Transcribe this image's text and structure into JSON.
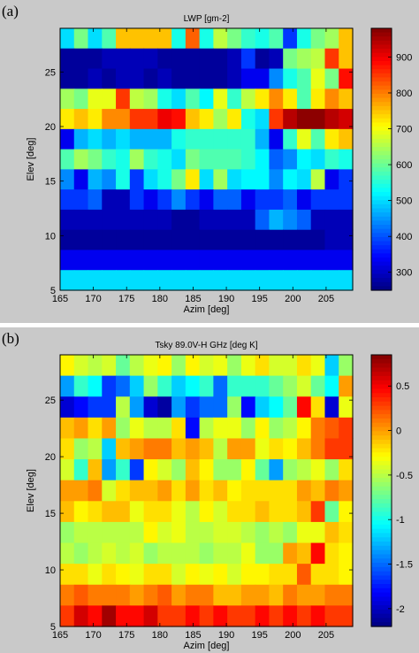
{
  "panels": [
    {
      "label": "(a)",
      "chart_data": {
        "type": "heatmap",
        "title": "LWP [gm-2]",
        "xlabel": "Azim [deg]",
        "ylabel": "Elev [deg]",
        "xlim": [
          165,
          209
        ],
        "ylim": [
          5,
          29
        ],
        "xticks": [
          165,
          170,
          175,
          180,
          185,
          190,
          195,
          200,
          205
        ],
        "yticks": [
          5,
          10,
          15,
          20,
          25
        ],
        "colorbar": {
          "min": 250,
          "max": 980,
          "ticks": [
            300,
            400,
            500,
            600,
            700,
            800,
            900
          ]
        },
        "colormap": "jet",
        "grid": false,
        "rows_top_to_bottom": [
          "HMHLRRRRJTJOMKJLDJMNR",
          "AAABBBBAAAAABDABMNOUR",
          "AABABBABAAAABCCFJLPMV",
          "NMPPUONJHLIPKOQSQLQSR",
          "QRQSSUUWVRQNQJHUYZZYX",
          "CGHGHGGGJKKKKKGCKPLQR",
          "LNMKJNKJHMLLLKIEFIHKJ",
          "FCGFJDHJMQHNHIIFIHOCD",
          "DDEBBDCDFDCEECDDECDDD",
          "BBBBBBBBAABBBBEGFEBBB",
          "AAAAAAAAAAAAAAAAAAABB",
          "CCCCCCCCCCCCCCCCCCCCC",
          "HHHHHHHHHHHHHHHHHHHHH"
        ],
        "legend": "A=270 B=290 C=330 D=380 E=410 F=440 G=470 H=500 I=520 J=540 K=560 L=580 M=610 N=640 O=660 P=690 Q=720 R=750 S=790 T=820 U=850 V=880 W=900 X=920 Y=940 Z=970"
      }
    },
    {
      "label": "(b)",
      "chart_data": {
        "type": "heatmap",
        "title": "Tsky 89.0V-H GHz [deg K]",
        "xlabel": "Azim [deg]",
        "ylabel": "Elev [deg]",
        "xlim": [
          165,
          209
        ],
        "ylim": [
          5,
          29
        ],
        "xticks": [
          165,
          170,
          175,
          180,
          185,
          190,
          195,
          200,
          205
        ],
        "yticks": [
          5,
          10,
          15,
          20,
          25
        ],
        "colorbar": {
          "min": -2.2,
          "max": 0.85,
          "ticks": [
            0.5,
            0,
            -0.5,
            -1,
            -1.5,
            -2
          ]
        },
        "colormap": "jet",
        "grid": false,
        "rows_top_to_bottom": [
          "OMLMJLNOKOMNKNPMMPNGK",
          "FIHDEGKIGHIEIIIJKMJHR",
          "BCDDLFBAFDEEKCGHJVPBN",
          "QRPRKNLLPCLNNKOKLOSTU",
          "PKLGQRSSQRQLRRNPOQSUU",
          "MIQFIDOMKQOKKOJFKLNKP",
          "RRSMPQQRPRPQOPPPPRQSR",
          "QOPQQNPPNLOMPPQPPQUJO",
          "KLLLLLOMNLLMMLKLKNNQP",
          "LKLMLMKLLLKLLNKKRQVPO",
          "PPNPONPPMONOMOOPPTPPO",
          "STSSSRSTRSSQQRRQSRRSS",
          "UWVXVVWUUVUVUUVUVUVUU"
        ],
        "legend": "A=-2.1 B=-1.95 C=-1.8 D=-1.65 E=-1.5 F=-1.35 G=-1.2 H=-1.05 I=-0.9 J=-0.75 K=-0.6 L=-0.5 M=-0.42 N=-0.35 O=-0.27 P=-0.2 Q=-0.1 R=0 S=0.1 T=0.2 U=0.3 V=0.45 W=0.6 X=0.75"
      }
    }
  ],
  "colors": {
    "panel_bg": "#c9c9c9",
    "axes_bg": "#ffffff",
    "text": "#000000"
  }
}
